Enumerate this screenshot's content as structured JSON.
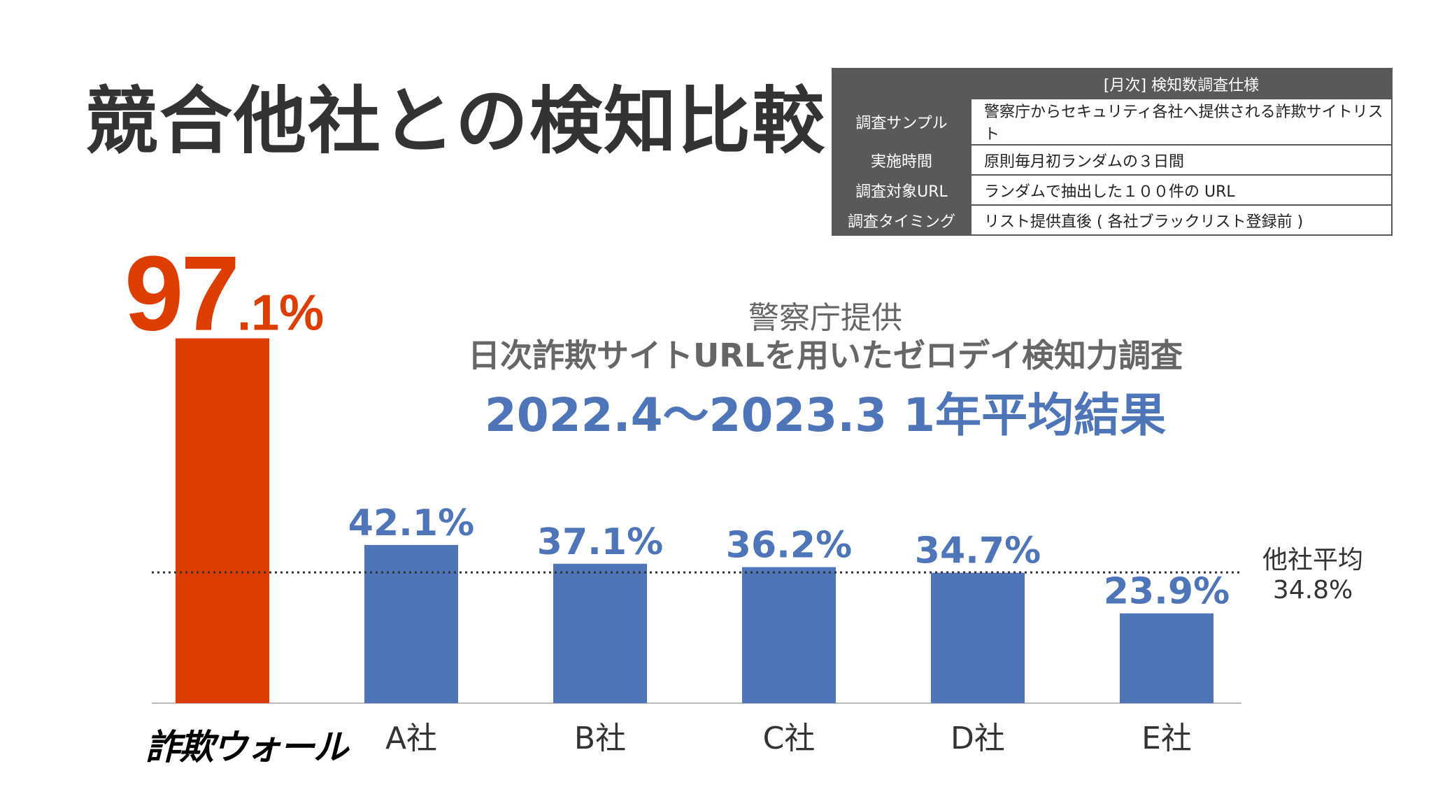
{
  "title": "競合他社との検知比較",
  "spec_table": {
    "header": "[月次] 検知数調査仕様",
    "rows": [
      {
        "label": "調査サンプル",
        "value": "警察庁からセキュリティ各社へ提供される詐欺サイトリスト"
      },
      {
        "label": "実施時間",
        "value": "原則毎月初ランダムの３日間"
      },
      {
        "label": "調査対象URL",
        "value": "ランダムで抽出した１００件の URL"
      },
      {
        "label": "調査タイミング",
        "value": "リスト提供直後 ( 各社ブラックリスト登録前 )"
      }
    ]
  },
  "subtitle_line1": "警察庁提供",
  "subtitle_line2": "日次詐欺サイトURLを用いたゼロデイ検知力調査",
  "period": "2022.4～2023.3   1年平均結果",
  "chart_data": {
    "type": "bar",
    "categories": [
      "詐欺ウォール",
      "A社",
      "B社",
      "C社",
      "D社",
      "E社"
    ],
    "values": [
      97.1,
      42.1,
      37.1,
      36.2,
      34.7,
      23.9
    ],
    "value_labels": [
      "97.1%",
      "42.1%",
      "37.1%",
      "36.2%",
      "34.7%",
      "23.9%"
    ],
    "ylim": [
      0,
      100
    ],
    "colors": {
      "highlight": "#de3d00",
      "others": "#4e75b8",
      "reference": "#333333"
    },
    "reference_line": {
      "value": 34.8,
      "label_line1": "他社平均",
      "label_line2": "34.8%"
    },
    "grid": false,
    "legend": "none"
  }
}
